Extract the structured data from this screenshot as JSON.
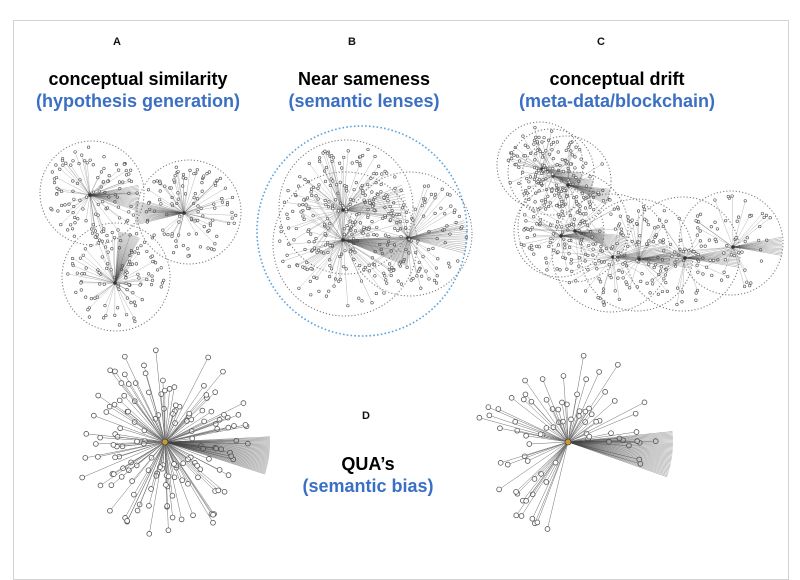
{
  "panels": {
    "A": {
      "letter": "A",
      "title": "conceptual similarity",
      "subtitle": "(hypothesis generation)"
    },
    "B": {
      "letter": "B",
      "title": "Near sameness",
      "subtitle": "(semantic lenses)"
    },
    "C": {
      "letter": "C",
      "title": "conceptual drift",
      "subtitle": "(meta-data/blockchain)"
    },
    "D": {
      "letter": "D",
      "title": "QUA’s",
      "subtitle": "(semantic bias)"
    }
  },
  "colors": {
    "title": "#000000",
    "subtitle": "#3a6fc4",
    "edge": "#6f6f6f",
    "node_stroke": "#555555",
    "ring": "#777777",
    "lens_ring": "#5aa3de",
    "hub": "#c79a3a"
  }
}
